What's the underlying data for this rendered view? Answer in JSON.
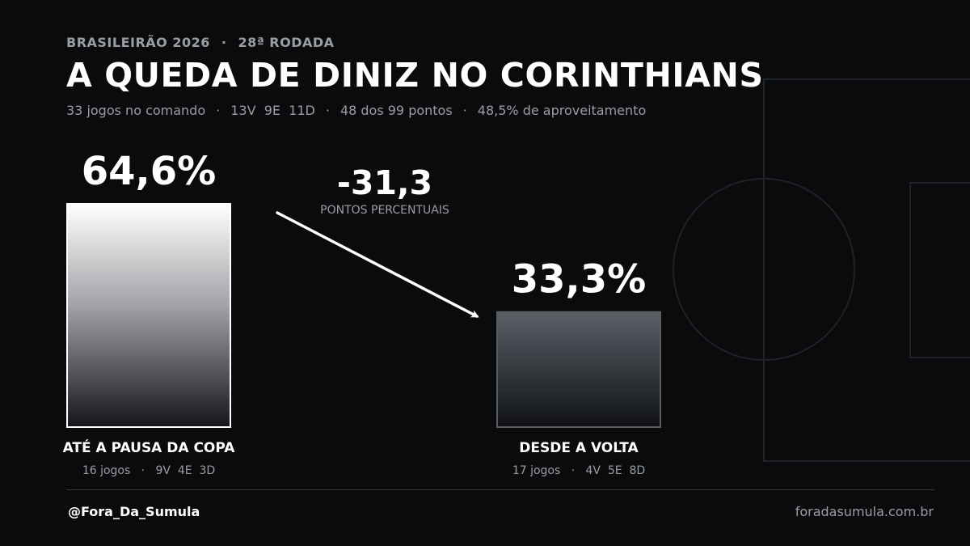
{
  "header": {
    "kicker_competition": "BRASILEIRÃO 2026",
    "kicker_separator": "·",
    "kicker_round": "28ª RODADA",
    "title": "A QUEDA DE DINIZ NO CORINTHIANS",
    "subtitle": {
      "separator": "·",
      "items": [
        "33 jogos no comando",
        "13V  9E  11D",
        "48 dos 99 pontos",
        "48,5% de aproveitamento"
      ]
    }
  },
  "chart_data": {
    "type": "bar",
    "title": "A QUEDA DE DINIZ NO CORINTHIANS",
    "categories": [
      "ATÉ A PAUSA DA COPA",
      "DESDE A VOLTA"
    ],
    "values": [
      64.6,
      33.3
    ],
    "value_labels": [
      "64,6%",
      "33,3%"
    ],
    "category_details": [
      "16 jogos   ·   9V  4E  3D",
      "17 jogos   ·   4V  5E  8D"
    ],
    "ylim": [
      0,
      64.6
    ],
    "grid": false,
    "annotation": {
      "value": "-31,3",
      "label": "PONTOS PERCENTUAIS"
    }
  },
  "footer": {
    "handle": "@Fora_Da_Sumula",
    "site": "foradasumula.com.br"
  },
  "colors": {
    "background": "#0a0b0d",
    "muted_text": "#9a9da2",
    "pitch_lines": "#1f2226",
    "bar1_border": "#ffffff",
    "bar2_border": "#5a5e63"
  }
}
